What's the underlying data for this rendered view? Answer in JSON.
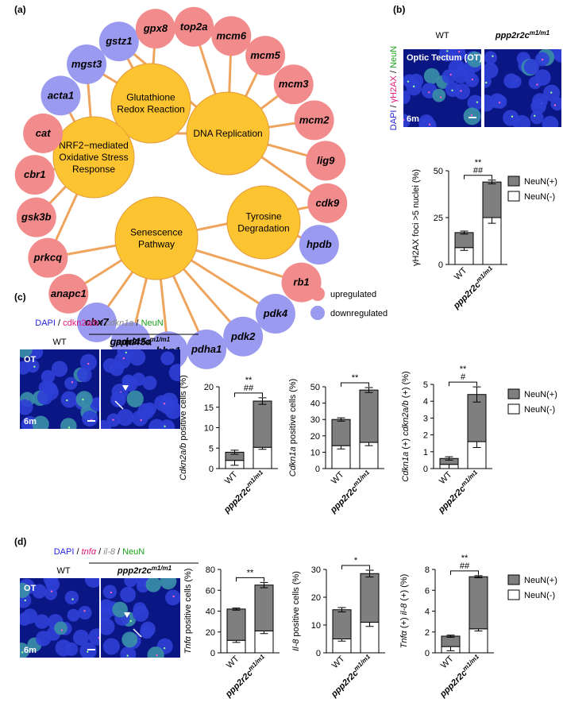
{
  "network": {
    "panel": "(a)",
    "colors": {
      "up": "#f28b8b",
      "down": "#9a9af0",
      "hub": "#fcc431",
      "edge": "#eea45c"
    },
    "hubs": [
      {
        "lines": [
          "Glutathione",
          "Redox Reaction"
        ]
      },
      {
        "lines": [
          "DNA Replication"
        ]
      },
      {
        "lines": [
          "NRF2−mediated",
          "Oxidative Stress",
          "Response"
        ]
      },
      {
        "lines": [
          "Tyrosine",
          "Degradation"
        ]
      },
      {
        "lines": [
          "Senescence",
          "Pathway"
        ]
      }
    ],
    "genes": [
      {
        "label": "top2a",
        "regulation": "up",
        "hubs": [
          1
        ]
      },
      {
        "label": "mcm6",
        "regulation": "up",
        "hubs": [
          1
        ]
      },
      {
        "label": "mcm5",
        "regulation": "up",
        "hubs": [
          1
        ]
      },
      {
        "label": "mcm3",
        "regulation": "up",
        "hubs": [
          1
        ]
      },
      {
        "label": "mcm2",
        "regulation": "up",
        "hubs": [
          1
        ]
      },
      {
        "label": "lig9",
        "regulation": "up",
        "hubs": [
          1
        ]
      },
      {
        "label": "cdk9",
        "regulation": "up",
        "hubs": [
          1,
          4
        ]
      },
      {
        "label": "hpdb",
        "regulation": "down",
        "hubs": [
          3
        ]
      },
      {
        "label": "rb1",
        "regulation": "up",
        "hubs": [
          4
        ]
      },
      {
        "label": "pdk4",
        "regulation": "down",
        "hubs": [
          4
        ]
      },
      {
        "label": "pdk2",
        "regulation": "down",
        "hubs": [
          4
        ]
      },
      {
        "label": "pdha1",
        "regulation": "down",
        "hubs": [
          4
        ]
      },
      {
        "label": "hbp1",
        "regulation": "down",
        "hubs": [
          4
        ]
      },
      {
        "label": "gadd45a",
        "regulation": "down",
        "hubs": [
          4
        ]
      },
      {
        "label": "cbx7",
        "regulation": "down",
        "hubs": [
          4
        ]
      },
      {
        "label": "anapc1",
        "regulation": "up",
        "hubs": [
          4
        ]
      },
      {
        "label": "prkcq",
        "regulation": "up",
        "hubs": [
          2,
          4
        ]
      },
      {
        "label": "gsk3b",
        "regulation": "up",
        "hubs": [
          2
        ]
      },
      {
        "label": "cbr1",
        "regulation": "up",
        "hubs": [
          2
        ]
      },
      {
        "label": "cat",
        "regulation": "up",
        "hubs": [
          2,
          1
        ]
      },
      {
        "label": "acta1",
        "regulation": "down",
        "hubs": [
          2
        ]
      },
      {
        "label": "mgst3",
        "regulation": "down",
        "hubs": [
          0,
          2
        ]
      },
      {
        "label": "gstz1",
        "regulation": "down",
        "hubs": [
          0,
          1
        ]
      },
      {
        "label": "gpx8",
        "regulation": "up",
        "hubs": [
          0
        ]
      }
    ],
    "legend": [
      {
        "label": "upregulated",
        "regulation": "up"
      },
      {
        "label": "downregulated",
        "regulation": "down"
      }
    ]
  },
  "micrographs": [
    {
      "panel": "(b)",
      "channels": [
        {
          "text": "DAPI",
          "color": "#2424d8"
        },
        {
          "text": " / ",
          "color": "#000"
        },
        {
          "text": "γH2AX",
          "color": "#e0177c"
        },
        {
          "text": " / ",
          "color": "#000"
        },
        {
          "text": "NeuN",
          "color": "#18a018"
        }
      ],
      "columns": [
        {
          "text": "WT"
        },
        {
          "text": "ppp2r2c",
          "sup": "m1/m1"
        }
      ],
      "region": "Optic Tectum (OT)",
      "age": "6m"
    },
    {
      "panel": "(c)",
      "channels": [
        {
          "text": "DAPI",
          "color": "#2424d8"
        },
        {
          "text": " / ",
          "color": "#000"
        },
        {
          "text": "cdkn2a/b",
          "color": "#e0177c"
        },
        {
          "text": " / ",
          "color": "#000"
        },
        {
          "text": "cdkn1a",
          "color": "#888888",
          "italic": true
        },
        {
          "text": " / ",
          "color": "#000"
        },
        {
          "text": "NeuN",
          "color": "#18a018"
        }
      ],
      "columns": [
        {
          "text": "WT"
        },
        {
          "text": "ppp2r2c",
          "sup": "m1/m1"
        }
      ],
      "region": "OT",
      "age": "6m"
    },
    {
      "panel": "(d)",
      "channels": [
        {
          "text": "DAPI",
          "color": "#2424d8"
        },
        {
          "text": " / ",
          "color": "#000"
        },
        {
          "text": "tnfα",
          "color": "#e0177c",
          "italic": true
        },
        {
          "text": " / ",
          "color": "#000"
        },
        {
          "text": "il-8",
          "color": "#888888",
          "italic": true
        },
        {
          "text": " / ",
          "color": "#000"
        },
        {
          "text": "NeuN",
          "color": "#18a018"
        }
      ],
      "columns": [
        {
          "text": "WT"
        },
        {
          "text": "ppp2r2c",
          "sup": "m1/m1"
        }
      ],
      "region": "OT",
      "age": "6m"
    }
  ],
  "chart_data": [
    {
      "type": "bar",
      "stacked": true,
      "legend": true,
      "ylabel": [
        {
          "text": "γH2AX foci >5 nuclei (%)"
        }
      ],
      "categories": [
        {
          "text": "WT"
        },
        {
          "text": "ppp2r2c",
          "sup": "m1/m1",
          "italic": true
        }
      ],
      "series": [
        {
          "name": "NeuN(+)",
          "color": "#7f7f7f",
          "values": [
            8,
            19
          ],
          "errors": [
            0.8,
            1
          ]
        },
        {
          "name": "NeuN(-)",
          "color": "#ffffff",
          "values": [
            9,
            25
          ],
          "errors": [
            1.5,
            3
          ]
        }
      ],
      "ylim": [
        0,
        50
      ],
      "yticks": [
        0,
        25,
        50
      ],
      "significance": [
        "**",
        "##"
      ]
    },
    {
      "type": "bar",
      "stacked": true,
      "legend": false,
      "ylabel": [
        {
          "text": "Cdkn2a/b",
          "italic": true
        },
        {
          "text": " positive cells (%)"
        }
      ],
      "categories": [
        {
          "text": "WT"
        },
        {
          "text": "ppp2r2c",
          "sup": "m1/m1",
          "italic": true
        }
      ],
      "series": [
        {
          "name": "NeuN(+)",
          "color": "#7f7f7f",
          "values": [
            2,
            11.3
          ],
          "errors": [
            0.5,
            0.8
          ]
        },
        {
          "name": "NeuN(-)",
          "color": "#ffffff",
          "values": [
            2,
            5.2
          ],
          "errors": [
            1.2,
            0.5
          ]
        }
      ],
      "ylim": [
        0,
        20
      ],
      "yticks": [
        0,
        5,
        10,
        15,
        20
      ],
      "significance": [
        "**",
        "##"
      ]
    },
    {
      "type": "bar",
      "stacked": true,
      "legend": false,
      "ylabel": [
        {
          "text": "Cdkn1a",
          "italic": true
        },
        {
          "text": " positive cells (%)"
        }
      ],
      "categories": [
        {
          "text": "WT"
        },
        {
          "text": "ppp2r2c",
          "sup": "m1/m1",
          "italic": true
        }
      ],
      "series": [
        {
          "name": "NeuN(+)",
          "color": "#7f7f7f",
          "values": [
            16,
            32
          ],
          "errors": [
            1,
            1.5
          ]
        },
        {
          "name": "NeuN(-)",
          "color": "#ffffff",
          "values": [
            14,
            16
          ],
          "errors": [
            2,
            2
          ]
        }
      ],
      "ylim": [
        0,
        50
      ],
      "yticks": [
        0,
        10,
        20,
        30,
        40,
        50
      ],
      "significance": [
        "**"
      ]
    },
    {
      "type": "bar",
      "stacked": true,
      "legend": true,
      "ylabel": [
        {
          "text": "Cdkn1a",
          "italic": true
        },
        {
          "text": " (+) "
        },
        {
          "text": "cdkn2a/b",
          "italic": true
        },
        {
          "text": " (+) (%)"
        }
      ],
      "categories": [
        {
          "text": "WT"
        },
        {
          "text": "ppp2r2c",
          "sup": "m1/m1",
          "italic": true
        }
      ],
      "series": [
        {
          "name": "NeuN(+)",
          "color": "#7f7f7f",
          "values": [
            0.35,
            2.8
          ],
          "errors": [
            0.1,
            0.45
          ]
        },
        {
          "name": "NeuN(-)",
          "color": "#ffffff",
          "values": [
            0.25,
            1.6
          ],
          "errors": [
            0.25,
            0.35
          ]
        }
      ],
      "ylim": [
        0,
        5
      ],
      "yticks": [
        0,
        1,
        2,
        3,
        4,
        5
      ],
      "significance": [
        "**",
        "#"
      ]
    },
    {
      "type": "bar",
      "stacked": true,
      "legend": false,
      "ylabel": [
        {
          "text": "Tnfα",
          "italic": true
        },
        {
          "text": " positive cells (%)"
        }
      ],
      "categories": [
        {
          "text": "WT"
        },
        {
          "text": "ppp2r2c",
          "sup": "m1/m1",
          "italic": true
        }
      ],
      "series": [
        {
          "name": "NeuN(+)",
          "color": "#7f7f7f",
          "values": [
            30,
            44
          ],
          "errors": [
            1,
            2.5
          ]
        },
        {
          "name": "NeuN(-)",
          "color": "#ffffff",
          "values": [
            12,
            21
          ],
          "errors": [
            2,
            2.5
          ]
        }
      ],
      "ylim": [
        0,
        80
      ],
      "yticks": [
        0,
        20,
        40,
        60,
        80
      ],
      "significance": [
        "**"
      ]
    },
    {
      "type": "bar",
      "stacked": true,
      "legend": false,
      "ylabel": [
        {
          "text": "Il-8",
          "italic": true
        },
        {
          "text": " positive cells (%)"
        }
      ],
      "categories": [
        {
          "text": "WT"
        },
        {
          "text": "ppp2r2c",
          "sup": "m1/m1",
          "italic": true
        }
      ],
      "series": [
        {
          "name": "NeuN(+)",
          "color": "#7f7f7f",
          "values": [
            10.5,
            17.5
          ],
          "errors": [
            0.8,
            1.2
          ]
        },
        {
          "name": "NeuN(-)",
          "color": "#ffffff",
          "values": [
            5,
            11
          ],
          "errors": [
            0.8,
            1.5
          ]
        }
      ],
      "ylim": [
        0,
        30
      ],
      "yticks": [
        0,
        10,
        20,
        30
      ],
      "significance": [
        "*"
      ]
    },
    {
      "type": "bar",
      "stacked": true,
      "legend": true,
      "ylabel": [
        {
          "text": "Tnfα",
          "italic": true
        },
        {
          "text": " (+) "
        },
        {
          "text": "il-8",
          "italic": true
        },
        {
          "text": " (+) (%)"
        }
      ],
      "categories": [
        {
          "text": "WT"
        },
        {
          "text": "ppp2r2c",
          "sup": "m1/m1",
          "italic": true
        }
      ],
      "series": [
        {
          "name": "NeuN(+)",
          "color": "#7f7f7f",
          "values": [
            1,
            5
          ],
          "errors": [
            0.1,
            0.1
          ]
        },
        {
          "name": "NeuN(-)",
          "color": "#ffffff",
          "values": [
            0.6,
            2.3
          ],
          "errors": [
            0.4,
            0.2
          ]
        }
      ],
      "ylim": [
        0,
        8
      ],
      "yticks": [
        0,
        2,
        4,
        6,
        8
      ],
      "significance": [
        "**",
        "##"
      ]
    }
  ]
}
